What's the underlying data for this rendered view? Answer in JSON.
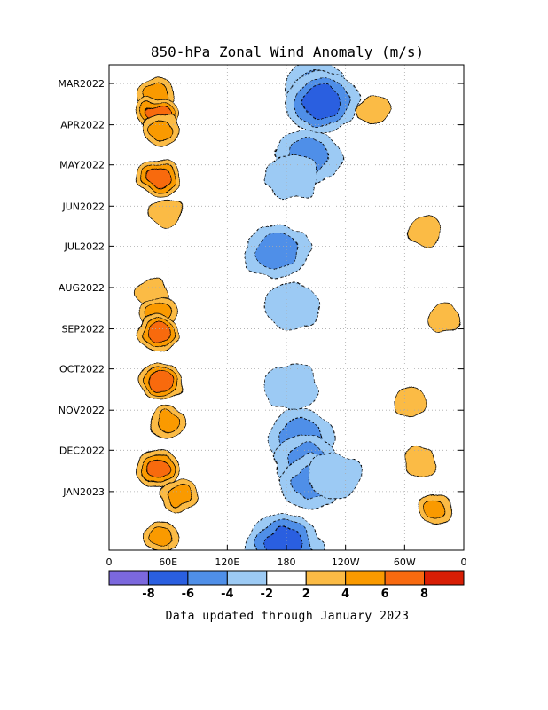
{
  "chart_data": {
    "type": "heatmap",
    "title": "850-hPa Zonal Wind Anomaly (m/s)",
    "xlabel": "",
    "ylabel": "",
    "x_tick_labels": [
      "0",
      "60E",
      "120E",
      "180",
      "120W",
      "60W",
      "0"
    ],
    "x_tick_lon": [
      0,
      60,
      120,
      180,
      240,
      300,
      360
    ],
    "y_tick_labels": [
      "MAR2022",
      "APR2022",
      "MAY2022",
      "JUN2022",
      "JUL2022",
      "AUG2022",
      "SEP2022",
      "OCT2022",
      "NOV2022",
      "DEC2022",
      "JAN2023"
    ],
    "y_range": [
      "2022-02-15",
      "2023-02-14"
    ],
    "grid": true,
    "colorbar": {
      "labels": [
        "-8",
        "-6",
        "-4",
        "-2",
        "2",
        "4",
        "6",
        "8"
      ],
      "bins": [
        {
          "range": "< -8",
          "color": "#7b68dd"
        },
        {
          "range": "-8 to -6",
          "color": "#2a5fe0"
        },
        {
          "range": "-6 to -4",
          "color": "#4f8fe8"
        },
        {
          "range": "-4 to -2",
          "color": "#9ccaf4"
        },
        {
          "range": "-2 to 2",
          "color": "#ffffff"
        },
        {
          "range": "2 to 4",
          "color": "#fbbb45"
        },
        {
          "range": "4 to 6",
          "color": "#fa9a00"
        },
        {
          "range": "6 to 8",
          "color": "#f86a10"
        },
        {
          "range": "> 8",
          "color": "#d81e05"
        }
      ]
    },
    "anomaly_features": [
      {
        "lon": 48,
        "date": "2022-03-10",
        "value": 4
      },
      {
        "lon": 49,
        "date": "2022-03-25",
        "value": 7
      },
      {
        "lon": 52,
        "date": "2022-04-05",
        "value": 4
      },
      {
        "lon": 50,
        "date": "2022-05-10",
        "value": 6
      },
      {
        "lon": 58,
        "date": "2022-06-05",
        "value": 3
      },
      {
        "lon": 43,
        "date": "2022-08-05",
        "value": 3
      },
      {
        "lon": 51,
        "date": "2022-08-20",
        "value": 5
      },
      {
        "lon": 49,
        "date": "2022-09-05",
        "value": 7
      },
      {
        "lon": 53,
        "date": "2022-10-10",
        "value": 6
      },
      {
        "lon": 59,
        "date": "2022-11-10",
        "value": 5
      },
      {
        "lon": 50,
        "date": "2022-12-15",
        "value": 7
      },
      {
        "lon": 70,
        "date": "2023-01-05",
        "value": 5
      },
      {
        "lon": 52,
        "date": "2023-02-05",
        "value": 4
      },
      {
        "lon": 270,
        "date": "2022-03-20",
        "value": 3
      },
      {
        "lon": 320,
        "date": "2022-06-20",
        "value": 3
      },
      {
        "lon": 340,
        "date": "2022-08-25",
        "value": 3
      },
      {
        "lon": 305,
        "date": "2022-10-25",
        "value": 3
      },
      {
        "lon": 315,
        "date": "2022-12-10",
        "value": 3
      },
      {
        "lon": 330,
        "date": "2023-01-15",
        "value": 4
      },
      {
        "lon": 210,
        "date": "2022-03-05",
        "value": -4
      },
      {
        "lon": 216,
        "date": "2022-03-15",
        "value": -6
      },
      {
        "lon": 202,
        "date": "2022-04-25",
        "value": -4
      },
      {
        "lon": 185,
        "date": "2022-05-10",
        "value": -3
      },
      {
        "lon": 170,
        "date": "2022-07-05",
        "value": -5
      },
      {
        "lon": 185,
        "date": "2022-08-15",
        "value": -3
      },
      {
        "lon": 185,
        "date": "2022-10-15",
        "value": -3
      },
      {
        "lon": 195,
        "date": "2022-11-20",
        "value": -4
      },
      {
        "lon": 200,
        "date": "2022-12-10",
        "value": -4
      },
      {
        "lon": 205,
        "date": "2022-12-25",
        "value": -5
      },
      {
        "lon": 228,
        "date": "2022-12-20",
        "value": -3
      },
      {
        "lon": 178,
        "date": "2023-02-10",
        "value": -6
      }
    ]
  },
  "footer_text": "Data updated through January 2023"
}
